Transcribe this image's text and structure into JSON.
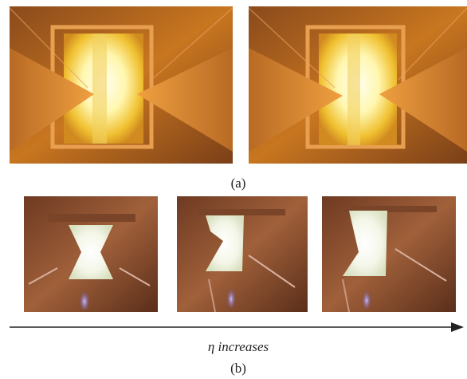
{
  "panel_a": {
    "label": "(a)"
  },
  "panel_b": {
    "caption": "η increases",
    "label": "(b)"
  }
}
